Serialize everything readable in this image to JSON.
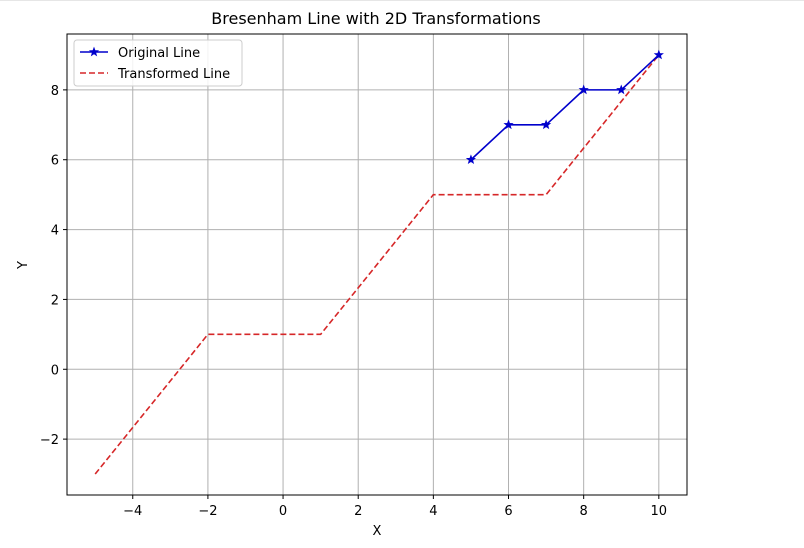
{
  "chart_data": {
    "type": "line",
    "title": "Bresenham Line with 2D Transformations",
    "xlabel": "X",
    "ylabel": "Y",
    "xlim": [
      -5.75,
      10.75
    ],
    "ylim": [
      -3.6,
      9.6
    ],
    "xticks": [
      -4,
      -2,
      0,
      2,
      4,
      6,
      8,
      10
    ],
    "yticks": [
      -2,
      0,
      2,
      4,
      6,
      8
    ],
    "xtick_labels": [
      "−4",
      "−2",
      "0",
      "2",
      "4",
      "6",
      "8",
      "10"
    ],
    "ytick_labels": [
      "−2",
      "0",
      "2",
      "4",
      "6",
      "8"
    ],
    "grid": true,
    "legend_position": "top-left",
    "series": [
      {
        "name": "Original Line",
        "color": "#0000cc",
        "style": "solid",
        "marker": "star",
        "x": [
          5,
          6,
          7,
          8,
          9,
          10
        ],
        "y": [
          6,
          7,
          7,
          8,
          8,
          9
        ]
      },
      {
        "name": "Transformed Line",
        "color": "#d62728",
        "style": "dashed",
        "marker": "none",
        "x": [
          -5,
          -2,
          1,
          4,
          7,
          10
        ],
        "y": [
          -3,
          1,
          1,
          5,
          5,
          9
        ]
      }
    ]
  }
}
